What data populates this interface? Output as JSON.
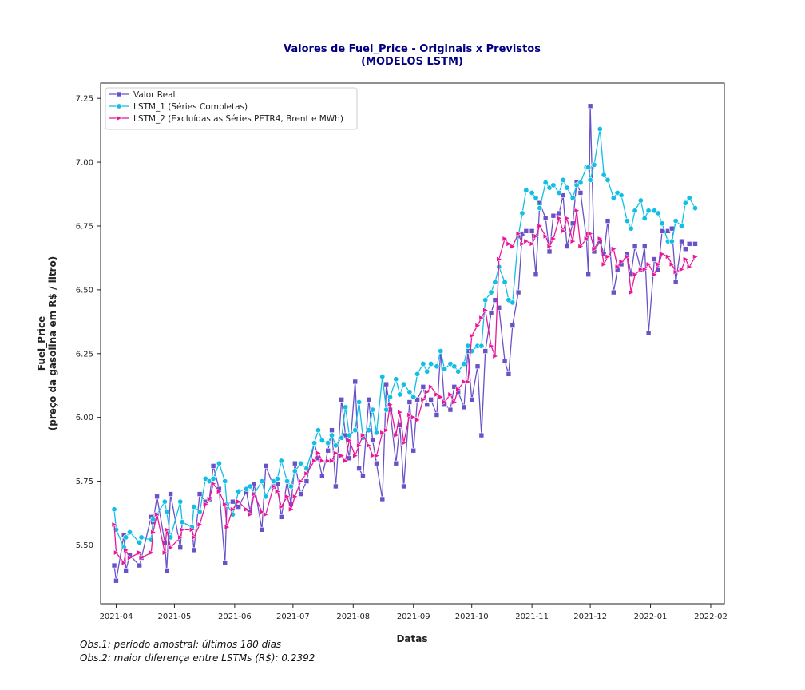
{
  "chart_data": {
    "type": "line",
    "title_line1": "Valores de Fuel_Price - Originais x Previstos",
    "title_line2": "(MODELOS LSTM)",
    "xlabel": "Datas",
    "ylabel_line1": "Fuel_Price",
    "ylabel_line2": "(preço da gasolina em R$ / litro)",
    "x_range": [
      "2021-03-24",
      "2022-02-08"
    ],
    "ylim": [
      5.27,
      7.31
    ],
    "x_ticks": [
      "2021-04",
      "2021-05",
      "2021-06",
      "2021-07",
      "2021-08",
      "2021-09",
      "2021-10",
      "2021-11",
      "2021-12",
      "2022-01",
      "2022-02"
    ],
    "y_ticks": [
      "5.50",
      "5.75",
      "6.00",
      "6.25",
      "6.50",
      "6.75",
      "7.00",
      "7.25"
    ],
    "grid": false,
    "legend_position": "top-left",
    "notes": [
      "Obs.1: período amostral: últimos 180 dias",
      "Obs.2: maior diferença entre LSTMs (R$): 0.2392"
    ],
    "series": [
      {
        "name": "Valor Real",
        "color": "#6a51c8",
        "marker": "square",
        "x": [
          "2021-03-31",
          "2021-04-01",
          "2021-04-05",
          "2021-04-06",
          "2021-04-08",
          "2021-04-13",
          "2021-04-14",
          "2021-04-19",
          "2021-04-20",
          "2021-04-22",
          "2021-04-26",
          "2021-04-27",
          "2021-04-29",
          "2021-05-04",
          "2021-05-05",
          "2021-05-10",
          "2021-05-11",
          "2021-05-14",
          "2021-05-17",
          "2021-05-19",
          "2021-05-21",
          "2021-05-24",
          "2021-05-27",
          "2021-05-28",
          "2021-05-31",
          "2021-06-03",
          "2021-06-07",
          "2021-06-09",
          "2021-06-11",
          "2021-06-15",
          "2021-06-17",
          "2021-06-21",
          "2021-06-23",
          "2021-06-25",
          "2021-06-28",
          "2021-06-30",
          "2021-07-02",
          "2021-07-05",
          "2021-07-08",
          "2021-07-12",
          "2021-07-14",
          "2021-07-16",
          "2021-07-19",
          "2021-07-21",
          "2021-07-23",
          "2021-07-26",
          "2021-07-28",
          "2021-07-30",
          "2021-08-02",
          "2021-08-04",
          "2021-08-06",
          "2021-08-09",
          "2021-08-11",
          "2021-08-13",
          "2021-08-16",
          "2021-08-18",
          "2021-08-20",
          "2021-08-23",
          "2021-08-25",
          "2021-08-27",
          "2021-08-30",
          "2021-09-01",
          "2021-09-03",
          "2021-09-06",
          "2021-09-08",
          "2021-09-10",
          "2021-09-13",
          "2021-09-15",
          "2021-09-17",
          "2021-09-20",
          "2021-09-22",
          "2021-09-24",
          "2021-09-27",
          "2021-09-29",
          "2021-10-01",
          "2021-10-04",
          "2021-10-06",
          "2021-10-08",
          "2021-10-11",
          "2021-10-13",
          "2021-10-15",
          "2021-10-18",
          "2021-10-20",
          "2021-10-22",
          "2021-10-25",
          "2021-10-27",
          "2021-10-29",
          "2021-11-01",
          "2021-11-03",
          "2021-11-05",
          "2021-11-08",
          "2021-11-10",
          "2021-11-12",
          "2021-11-15",
          "2021-11-17",
          "2021-11-19",
          "2021-11-22",
          "2021-11-24",
          "2021-11-26",
          "2021-11-29",
          "2021-11-30",
          "2021-12-01",
          "2021-12-03",
          "2021-12-06",
          "2021-12-08",
          "2021-12-10",
          "2021-12-13",
          "2021-12-15",
          "2021-12-17",
          "2021-12-20",
          "2021-12-22",
          "2021-12-24",
          "2021-12-27",
          "2021-12-29",
          "2021-12-31",
          "2022-01-03",
          "2022-01-05",
          "2022-01-07",
          "2022-01-10",
          "2022-01-12",
          "2022-01-14",
          "2022-01-17",
          "2022-01-19",
          "2022-01-21",
          "2022-01-24"
        ],
        "values": [
          5.42,
          5.36,
          5.54,
          5.4,
          5.46,
          5.42,
          5.45,
          5.61,
          5.59,
          5.69,
          5.51,
          5.4,
          5.7,
          5.49,
          5.59,
          5.57,
          5.48,
          5.7,
          5.67,
          5.68,
          5.81,
          5.72,
          5.43,
          5.66,
          5.67,
          5.65,
          5.71,
          5.63,
          5.74,
          5.56,
          5.81,
          5.73,
          5.74,
          5.61,
          5.75,
          5.66,
          5.82,
          5.7,
          5.75,
          5.9,
          5.84,
          5.77,
          5.87,
          5.95,
          5.73,
          6.07,
          5.93,
          5.84,
          6.14,
          5.8,
          5.77,
          6.07,
          5.91,
          5.82,
          5.68,
          6.13,
          6.03,
          5.82,
          5.97,
          5.73,
          6.06,
          5.87,
          6.07,
          6.12,
          6.05,
          6.07,
          6.01,
          6.26,
          6.05,
          6.03,
          6.12,
          6.1,
          6.04,
          6.26,
          6.07,
          6.2,
          5.93,
          6.26,
          6.41,
          6.46,
          6.43,
          6.22,
          6.17,
          6.36,
          6.49,
          6.72,
          6.73,
          6.73,
          6.56,
          6.84,
          6.78,
          6.65,
          6.79,
          6.8,
          6.87,
          6.67,
          6.76,
          6.92,
          6.88,
          6.7,
          6.56,
          7.22,
          6.65,
          6.69,
          6.64,
          6.77,
          6.49,
          6.58,
          6.6,
          6.64,
          6.56,
          6.67,
          6.58,
          6.67,
          6.33,
          6.62,
          6.58,
          6.73,
          6.73,
          6.74,
          6.53,
          6.69,
          6.66,
          6.68,
          6.68
        ]
      },
      {
        "name": "LSTM_1 (Séries Completas)",
        "color": "#10bfe3",
        "marker": "circle",
        "x": [
          "2021-03-31",
          "2021-04-01",
          "2021-04-05",
          "2021-04-06",
          "2021-04-08",
          "2021-04-13",
          "2021-04-14",
          "2021-04-19",
          "2021-04-20",
          "2021-04-22",
          "2021-04-26",
          "2021-04-27",
          "2021-04-29",
          "2021-05-04",
          "2021-05-05",
          "2021-05-10",
          "2021-05-11",
          "2021-05-14",
          "2021-05-17",
          "2021-05-19",
          "2021-05-21",
          "2021-05-24",
          "2021-05-27",
          "2021-05-28",
          "2021-05-31",
          "2021-06-03",
          "2021-06-07",
          "2021-06-09",
          "2021-06-11",
          "2021-06-15",
          "2021-06-17",
          "2021-06-21",
          "2021-06-23",
          "2021-06-25",
          "2021-06-28",
          "2021-06-30",
          "2021-07-02",
          "2021-07-05",
          "2021-07-08",
          "2021-07-12",
          "2021-07-14",
          "2021-07-16",
          "2021-07-19",
          "2021-07-21",
          "2021-07-23",
          "2021-07-26",
          "2021-07-28",
          "2021-07-30",
          "2021-08-02",
          "2021-08-04",
          "2021-08-06",
          "2021-08-09",
          "2021-08-11",
          "2021-08-13",
          "2021-08-16",
          "2021-08-18",
          "2021-08-20",
          "2021-08-23",
          "2021-08-25",
          "2021-08-27",
          "2021-08-30",
          "2021-09-01",
          "2021-09-03",
          "2021-09-06",
          "2021-09-08",
          "2021-09-10",
          "2021-09-13",
          "2021-09-15",
          "2021-09-17",
          "2021-09-20",
          "2021-09-22",
          "2021-09-24",
          "2021-09-27",
          "2021-09-29",
          "2021-10-01",
          "2021-10-04",
          "2021-10-06",
          "2021-10-08",
          "2021-10-11",
          "2021-10-13",
          "2021-10-15",
          "2021-10-18",
          "2021-10-20",
          "2021-10-22",
          "2021-10-25",
          "2021-10-27",
          "2021-10-29",
          "2021-11-01",
          "2021-11-03",
          "2021-11-05",
          "2021-11-08",
          "2021-11-10",
          "2021-11-12",
          "2021-11-15",
          "2021-11-17",
          "2021-11-19",
          "2021-11-22",
          "2021-11-24",
          "2021-11-26",
          "2021-11-29",
          "2021-11-30",
          "2021-12-01",
          "2021-12-03",
          "2021-12-06",
          "2021-12-08",
          "2021-12-10",
          "2021-12-13",
          "2021-12-15",
          "2021-12-17",
          "2021-12-20",
          "2021-12-22",
          "2021-12-24",
          "2021-12-27",
          "2021-12-29",
          "2021-12-31",
          "2022-01-03",
          "2022-01-05",
          "2022-01-07",
          "2022-01-10",
          "2022-01-12",
          "2022-01-14",
          "2022-01-17",
          "2022-01-19",
          "2022-01-21",
          "2022-01-24"
        ],
        "values": [
          5.64,
          5.56,
          5.49,
          5.53,
          5.55,
          5.51,
          5.53,
          5.52,
          5.6,
          5.62,
          5.67,
          5.63,
          5.53,
          5.67,
          5.59,
          5.57,
          5.65,
          5.63,
          5.76,
          5.75,
          5.76,
          5.82,
          5.75,
          5.66,
          5.62,
          5.71,
          5.72,
          5.73,
          5.7,
          5.75,
          5.69,
          5.75,
          5.76,
          5.83,
          5.75,
          5.73,
          5.79,
          5.82,
          5.8,
          5.9,
          5.95,
          5.91,
          5.9,
          5.93,
          5.89,
          5.92,
          6.04,
          5.93,
          5.95,
          6.06,
          5.92,
          5.95,
          6.03,
          5.94,
          6.16,
          6.03,
          6.08,
          6.15,
          6.09,
          6.13,
          6.1,
          6.08,
          6.17,
          6.21,
          6.18,
          6.21,
          6.2,
          6.26,
          6.19,
          6.21,
          6.2,
          6.18,
          6.21,
          6.28,
          6.26,
          6.28,
          6.28,
          6.46,
          6.49,
          6.53,
          6.59,
          6.53,
          6.46,
          6.45,
          6.71,
          6.8,
          6.89,
          6.88,
          6.86,
          6.82,
          6.92,
          6.9,
          6.91,
          6.88,
          6.93,
          6.9,
          6.86,
          6.91,
          6.92,
          6.98,
          6.98,
          6.93,
          6.99,
          7.13,
          6.95,
          6.93,
          6.86,
          6.88,
          6.87,
          6.77,
          6.74,
          6.81,
          6.85,
          6.78,
          6.81,
          6.81,
          6.8,
          6.76,
          6.69,
          6.69,
          6.77,
          6.75,
          6.84,
          6.86,
          6.82
        ]
      },
      {
        "name": "LSTM_2 (Excluídas as Séries PETR4, Brent e MWh)",
        "color": "#e8179a",
        "marker": "triangle-right",
        "x": [
          "2021-03-31",
          "2021-04-01",
          "2021-04-05",
          "2021-04-06",
          "2021-04-08",
          "2021-04-13",
          "2021-04-14",
          "2021-04-19",
          "2021-04-20",
          "2021-04-22",
          "2021-04-26",
          "2021-04-27",
          "2021-04-29",
          "2021-05-04",
          "2021-05-05",
          "2021-05-10",
          "2021-05-11",
          "2021-05-14",
          "2021-05-17",
          "2021-05-19",
          "2021-05-21",
          "2021-05-24",
          "2021-05-27",
          "2021-05-28",
          "2021-05-31",
          "2021-06-03",
          "2021-06-07",
          "2021-06-09",
          "2021-06-11",
          "2021-06-15",
          "2021-06-17",
          "2021-06-21",
          "2021-06-23",
          "2021-06-25",
          "2021-06-28",
          "2021-06-30",
          "2021-07-02",
          "2021-07-05",
          "2021-07-08",
          "2021-07-12",
          "2021-07-14",
          "2021-07-16",
          "2021-07-19",
          "2021-07-21",
          "2021-07-23",
          "2021-07-26",
          "2021-07-28",
          "2021-07-30",
          "2021-08-02",
          "2021-08-04",
          "2021-08-06",
          "2021-08-09",
          "2021-08-11",
          "2021-08-13",
          "2021-08-16",
          "2021-08-18",
          "2021-08-20",
          "2021-08-23",
          "2021-08-25",
          "2021-08-27",
          "2021-08-30",
          "2021-09-01",
          "2021-09-03",
          "2021-09-06",
          "2021-09-08",
          "2021-09-10",
          "2021-09-13",
          "2021-09-15",
          "2021-09-17",
          "2021-09-20",
          "2021-09-22",
          "2021-09-24",
          "2021-09-27",
          "2021-09-29",
          "2021-10-01",
          "2021-10-04",
          "2021-10-06",
          "2021-10-08",
          "2021-10-11",
          "2021-10-13",
          "2021-10-15",
          "2021-10-18",
          "2021-10-20",
          "2021-10-22",
          "2021-10-25",
          "2021-10-27",
          "2021-10-29",
          "2021-11-01",
          "2021-11-03",
          "2021-11-05",
          "2021-11-08",
          "2021-11-10",
          "2021-11-12",
          "2021-11-15",
          "2021-11-17",
          "2021-11-19",
          "2021-11-22",
          "2021-11-24",
          "2021-11-26",
          "2021-11-29",
          "2021-11-30",
          "2021-12-01",
          "2021-12-03",
          "2021-12-06",
          "2021-12-08",
          "2021-12-10",
          "2021-12-13",
          "2021-12-15",
          "2021-12-17",
          "2021-12-20",
          "2021-12-22",
          "2021-12-24",
          "2021-12-27",
          "2021-12-29",
          "2021-12-31",
          "2022-01-03",
          "2022-01-05",
          "2022-01-07",
          "2022-01-10",
          "2022-01-12",
          "2022-01-14",
          "2022-01-17",
          "2022-01-19",
          "2022-01-21",
          "2022-01-24"
        ],
        "values": [
          5.58,
          5.47,
          5.43,
          5.48,
          5.45,
          5.47,
          5.45,
          5.47,
          5.55,
          5.62,
          5.47,
          5.56,
          5.49,
          5.53,
          5.56,
          5.56,
          5.53,
          5.58,
          5.66,
          5.68,
          5.74,
          5.71,
          5.66,
          5.57,
          5.64,
          5.67,
          5.64,
          5.62,
          5.7,
          5.63,
          5.62,
          5.73,
          5.71,
          5.65,
          5.69,
          5.64,
          5.69,
          5.75,
          5.78,
          5.83,
          5.86,
          5.83,
          5.83,
          5.83,
          5.86,
          5.85,
          5.83,
          5.91,
          5.85,
          5.89,
          5.93,
          5.89,
          5.85,
          5.85,
          5.94,
          5.95,
          6.05,
          5.93,
          6.02,
          5.9,
          6.01,
          6.0,
          5.99,
          6.07,
          6.1,
          6.12,
          6.09,
          6.08,
          6.06,
          6.09,
          6.06,
          6.11,
          6.14,
          6.14,
          6.32,
          6.36,
          6.39,
          6.42,
          6.28,
          6.24,
          6.62,
          6.7,
          6.68,
          6.67,
          6.72,
          6.68,
          6.69,
          6.68,
          6.71,
          6.75,
          6.71,
          6.67,
          6.7,
          6.78,
          6.73,
          6.78,
          6.69,
          6.81,
          6.67,
          6.7,
          6.72,
          6.72,
          6.66,
          6.7,
          6.6,
          6.63,
          6.66,
          6.59,
          6.61,
          6.63,
          6.49,
          6.56,
          6.58,
          6.58,
          6.6,
          6.56,
          6.6,
          6.64,
          6.63,
          6.6,
          6.57,
          6.58,
          6.62,
          6.59,
          6.63
        ]
      }
    ]
  }
}
